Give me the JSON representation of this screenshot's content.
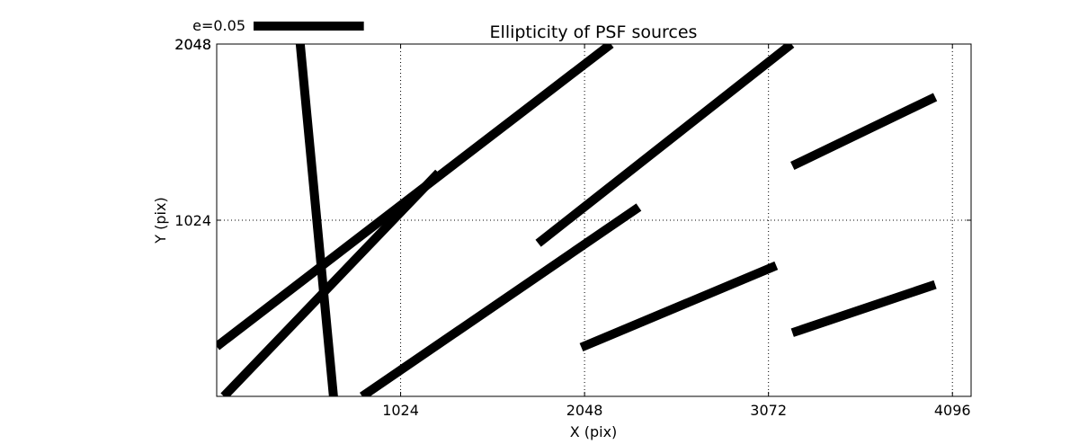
{
  "chart_data": {
    "type": "line",
    "title": "Ellipticity of PSF sources",
    "xlabel": "X (pix)",
    "ylabel": "Y (pix)",
    "xlim": [
      0,
      4200
    ],
    "ylim": [
      0,
      2048
    ],
    "x_ticks": [
      1024,
      2048,
      3072,
      4096
    ],
    "y_ticks": [
      1024,
      2048
    ],
    "x_tick_labels": [
      "1024",
      "2048",
      "3072",
      "4096"
    ],
    "y_tick_labels": [
      "1024",
      "2048"
    ],
    "y_tick_labels_dup": [
      "2048"
    ],
    "grid": true,
    "legend": {
      "label": "e=0.05",
      "position": "top-left, above axes",
      "length_x_units": 614
    },
    "series": [
      {
        "x": [
          0,
          2195
        ],
        "y": [
          290,
          2048
        ]
      },
      {
        "x": [
          40,
          1235
        ],
        "y": [
          0,
          1300
        ]
      },
      {
        "x": [
          465,
          650
        ],
        "y": [
          2048,
          0
        ]
      },
      {
        "x": [
          810,
          2350
        ],
        "y": [
          0,
          1100
        ]
      },
      {
        "x": [
          1790,
          3200
        ],
        "y": [
          890,
          2048
        ]
      },
      {
        "x": [
          2030,
          3115
        ],
        "y": [
          285,
          760
        ]
      },
      {
        "x": [
          3205,
          4000
        ],
        "y": [
          1340,
          1740
        ]
      },
      {
        "x": [
          3205,
          4000
        ],
        "y": [
          370,
          650
        ]
      }
    ]
  }
}
